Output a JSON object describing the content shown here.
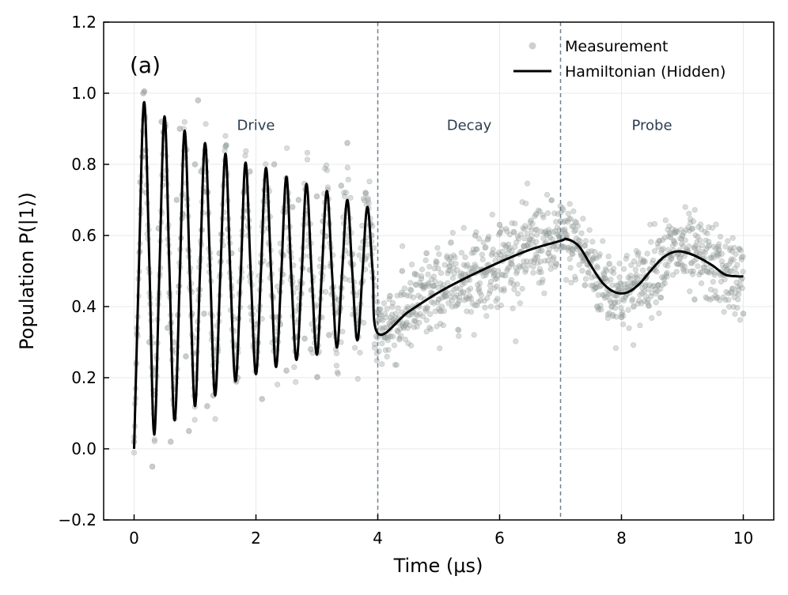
{
  "chart_data": {
    "type": "scatter",
    "panel_label": "(a)",
    "xlabel": "Time (μs)",
    "ylabel": "Population P(|1⟩)",
    "xlim": [
      -0.5,
      10.5
    ],
    "ylim": [
      -0.2,
      1.2
    ],
    "xticks": [
      0,
      2,
      4,
      6,
      8,
      10
    ],
    "xtick_labels": [
      "0",
      "2",
      "4",
      "6",
      "8",
      "10"
    ],
    "yticks": [
      -0.2,
      0.0,
      0.2,
      0.4,
      0.6,
      0.8,
      1.0,
      1.2
    ],
    "ytick_labels": [
      "−0.2",
      "0.0",
      "0.2",
      "0.4",
      "0.6",
      "0.8",
      "1.0",
      "1.2"
    ],
    "grid": true,
    "legend": {
      "position": "top-right",
      "entries": [
        {
          "label": "Measurement",
          "kind": "marker",
          "color": "#a9b0ae"
        },
        {
          "label": "Hamiltonian (Hidden)",
          "kind": "line",
          "color": "#000000"
        }
      ]
    },
    "region_boundaries": [
      4,
      7
    ],
    "regions": [
      {
        "label": "Drive",
        "x": 2.0,
        "y": 0.91
      },
      {
        "label": "Decay",
        "x": 5.5,
        "y": 0.91
      },
      {
        "label": "Probe",
        "x": 8.5,
        "y": 0.91
      }
    ],
    "colors": {
      "measurement": "#7f8c8a",
      "model": "#000000",
      "boundary": "#708090",
      "region_text": "#2c3e50"
    },
    "series": [
      {
        "name": "Hamiltonian (Hidden)",
        "kind": "line",
        "x": [
          0.0,
          0.08,
          0.165,
          0.25,
          0.33,
          0.415,
          0.5,
          0.58,
          0.665,
          0.75,
          0.83,
          0.915,
          1.0,
          1.08,
          1.165,
          1.25,
          1.33,
          1.415,
          1.5,
          1.58,
          1.665,
          1.75,
          1.83,
          1.915,
          2.0,
          2.08,
          2.165,
          2.25,
          2.33,
          2.415,
          2.5,
          2.58,
          2.665,
          2.75,
          2.83,
          2.915,
          3.0,
          3.08,
          3.165,
          3.25,
          3.33,
          3.415,
          3.5,
          3.58,
          3.665,
          3.75,
          3.83,
          3.915,
          4.0,
          4.5,
          5.0,
          5.5,
          6.0,
          6.5,
          7.0,
          7.1,
          7.3,
          7.5,
          7.7,
          7.9,
          8.1,
          8.3,
          8.5,
          8.7,
          8.9,
          9.1,
          9.3,
          9.5,
          9.7,
          9.9,
          10.0
        ],
        "y": [
          0.0,
          0.52,
          0.975,
          0.52,
          0.04,
          0.5,
          0.935,
          0.5,
          0.08,
          0.49,
          0.895,
          0.49,
          0.12,
          0.49,
          0.86,
          0.49,
          0.15,
          0.49,
          0.83,
          0.49,
          0.19,
          0.49,
          0.805,
          0.49,
          0.21,
          0.49,
          0.79,
          0.49,
          0.23,
          0.49,
          0.765,
          0.49,
          0.25,
          0.49,
          0.745,
          0.49,
          0.265,
          0.49,
          0.725,
          0.49,
          0.285,
          0.5,
          0.7,
          0.5,
          0.305,
          0.5,
          0.68,
          0.5,
          0.325,
          0.385,
          0.44,
          0.485,
          0.525,
          0.56,
          0.585,
          0.59,
          0.57,
          0.515,
          0.465,
          0.44,
          0.44,
          0.465,
          0.505,
          0.54,
          0.555,
          0.55,
          0.535,
          0.515,
          0.49,
          0.485,
          0.485
        ]
      },
      {
        "name": "Measurement",
        "kind": "scatter",
        "x": [
          0.0,
          0.05,
          0.1,
          0.15,
          0.2,
          0.25,
          0.3,
          0.35,
          0.4,
          0.45,
          0.5,
          0.55,
          0.6,
          0.65,
          0.7,
          0.75,
          0.8,
          0.85,
          0.9,
          0.95,
          1.0,
          1.05,
          1.1,
          1.15,
          1.2,
          1.3,
          1.4,
          1.5,
          1.6,
          1.7,
          1.8,
          1.9,
          2.0,
          2.1,
          2.2,
          2.3,
          2.4,
          2.5,
          2.6,
          2.7,
          2.8,
          2.9,
          3.0,
          3.1,
          3.2,
          3.3,
          3.4,
          3.5,
          3.6,
          3.7,
          3.8,
          3.9,
          4.0,
          4.2,
          4.4,
          4.6,
          4.8,
          5.0,
          5.2,
          5.4,
          5.6,
          5.8,
          6.0,
          6.2,
          6.4,
          6.6,
          6.8,
          7.0,
          7.2,
          7.4,
          7.6,
          7.8,
          8.0,
          8.2,
          8.4,
          8.6,
          8.8,
          9.0,
          9.2,
          9.4,
          9.6,
          9.8,
          10.0
        ],
        "y": [
          0.02,
          0.34,
          0.75,
          1.0,
          0.72,
          0.3,
          -0.05,
          0.22,
          0.62,
          0.92,
          0.76,
          0.34,
          0.02,
          0.3,
          0.7,
          0.9,
          0.66,
          0.26,
          0.05,
          0.38,
          0.8,
          0.98,
          0.78,
          0.38,
          0.12,
          0.15,
          0.55,
          0.85,
          0.55,
          0.2,
          0.72,
          0.78,
          0.35,
          0.14,
          0.62,
          0.8,
          0.35,
          0.22,
          0.68,
          0.7,
          0.31,
          0.28,
          0.71,
          0.64,
          0.32,
          0.38,
          0.74,
          0.86,
          0.44,
          0.36,
          0.72,
          0.6,
          0.36,
          0.43,
          0.5,
          0.36,
          0.55,
          0.42,
          0.58,
          0.44,
          0.6,
          0.5,
          0.63,
          0.52,
          0.57,
          0.66,
          0.55,
          0.64,
          0.56,
          0.46,
          0.4,
          0.52,
          0.37,
          0.4,
          0.48,
          0.46,
          0.55,
          0.6,
          0.42,
          0.5,
          0.56,
          0.44,
          0.38
        ]
      }
    ]
  }
}
